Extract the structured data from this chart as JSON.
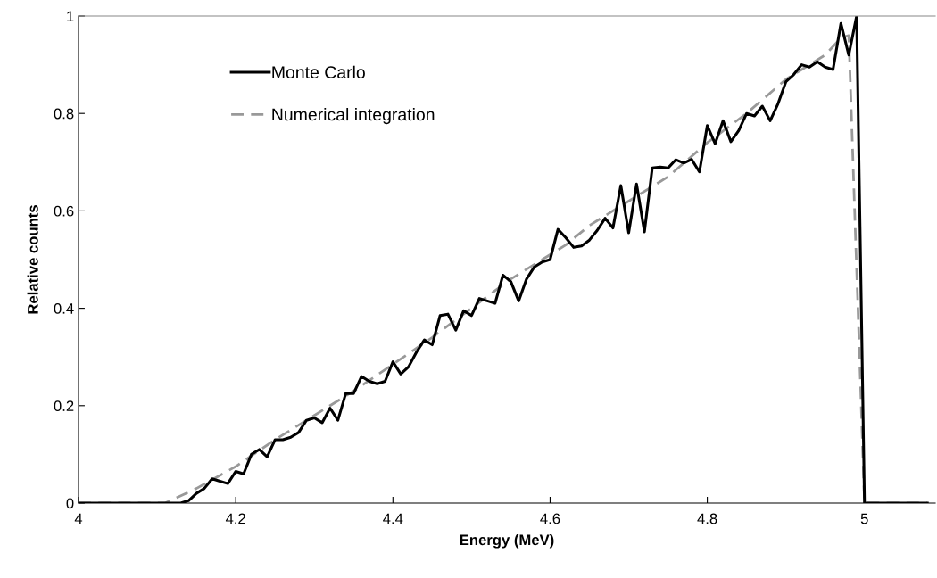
{
  "chart_data": {
    "type": "line",
    "xlabel": "Energy (MeV)",
    "ylabel": "Relative counts",
    "xlim": [
      4,
      5.09
    ],
    "xticks": [
      {
        "value": 4,
        "label": "4"
      },
      4.2,
      4.4,
      4.6,
      4.8,
      5
    ],
    "ylim": [
      0,
      1
    ],
    "yticks": [
      0,
      0.2,
      0.4,
      0.6,
      0.8,
      1
    ],
    "grid": false,
    "legend": "top left",
    "series": [
      {
        "name": "Monte Carlo",
        "color": "#000000",
        "line_style": "solid",
        "x": [
          4.0,
          4.13,
          4.14,
          4.15,
          4.16,
          4.17,
          4.18,
          4.19,
          4.2,
          4.21,
          4.22,
          4.23,
          4.24,
          4.25,
          4.26,
          4.27,
          4.28,
          4.29,
          4.3,
          4.31,
          4.32,
          4.33,
          4.34,
          4.35,
          4.36,
          4.37,
          4.38,
          4.39,
          4.4,
          4.41,
          4.42,
          4.43,
          4.44,
          4.45,
          4.46,
          4.47,
          4.48,
          4.49,
          4.5,
          4.51,
          4.52,
          4.53,
          4.54,
          4.55,
          4.56,
          4.57,
          4.58,
          4.59,
          4.6,
          4.61,
          4.62,
          4.63,
          4.64,
          4.65,
          4.66,
          4.67,
          4.68,
          4.69,
          4.7,
          4.71,
          4.72,
          4.73,
          4.74,
          4.75,
          4.76,
          4.77,
          4.78,
          4.79,
          4.8,
          4.81,
          4.82,
          4.83,
          4.84,
          4.85,
          4.86,
          4.87,
          4.88,
          4.89,
          4.9,
          4.91,
          4.92,
          4.93,
          4.94,
          4.95,
          4.96,
          4.97,
          4.98,
          4.99,
          5.0,
          5.08
        ],
        "values": [
          0,
          0,
          0.005,
          0.02,
          0.03,
          0.05,
          0.045,
          0.04,
          0.065,
          0.06,
          0.1,
          0.11,
          0.095,
          0.13,
          0.13,
          0.135,
          0.145,
          0.17,
          0.175,
          0.165,
          0.195,
          0.17,
          0.225,
          0.225,
          0.26,
          0.25,
          0.245,
          0.25,
          0.29,
          0.265,
          0.28,
          0.31,
          0.335,
          0.325,
          0.385,
          0.388,
          0.355,
          0.395,
          0.385,
          0.42,
          0.415,
          0.41,
          0.468,
          0.455,
          0.415,
          0.46,
          0.485,
          0.495,
          0.5,
          0.562,
          0.545,
          0.525,
          0.528,
          0.54,
          0.56,
          0.585,
          0.565,
          0.652,
          0.555,
          0.655,
          0.557,
          0.688,
          0.69,
          0.688,
          0.705,
          0.698,
          0.706,
          0.68,
          0.775,
          0.738,
          0.785,
          0.742,
          0.765,
          0.8,
          0.795,
          0.815,
          0.785,
          0.82,
          0.865,
          0.88,
          0.9,
          0.895,
          0.906,
          0.895,
          0.89,
          0.985,
          0.92,
          1.0,
          0,
          0
        ]
      },
      {
        "name": "Numerical integration",
        "color": "#999999",
        "line_style": "dashed",
        "x": [
          4.0,
          4.11,
          4.15,
          4.2,
          4.25,
          4.3,
          4.35,
          4.4,
          4.45,
          4.5,
          4.55,
          4.6,
          4.62,
          4.65,
          4.7,
          4.75,
          4.8,
          4.85,
          4.9,
          4.95,
          4.97,
          4.98,
          5.0,
          5.08
        ],
        "values": [
          0,
          0,
          0.03,
          0.075,
          0.13,
          0.18,
          0.23,
          0.285,
          0.34,
          0.4,
          0.46,
          0.51,
          0.53,
          0.57,
          0.62,
          0.67,
          0.74,
          0.8,
          0.87,
          0.92,
          0.955,
          0.96,
          0,
          0
        ]
      }
    ]
  }
}
